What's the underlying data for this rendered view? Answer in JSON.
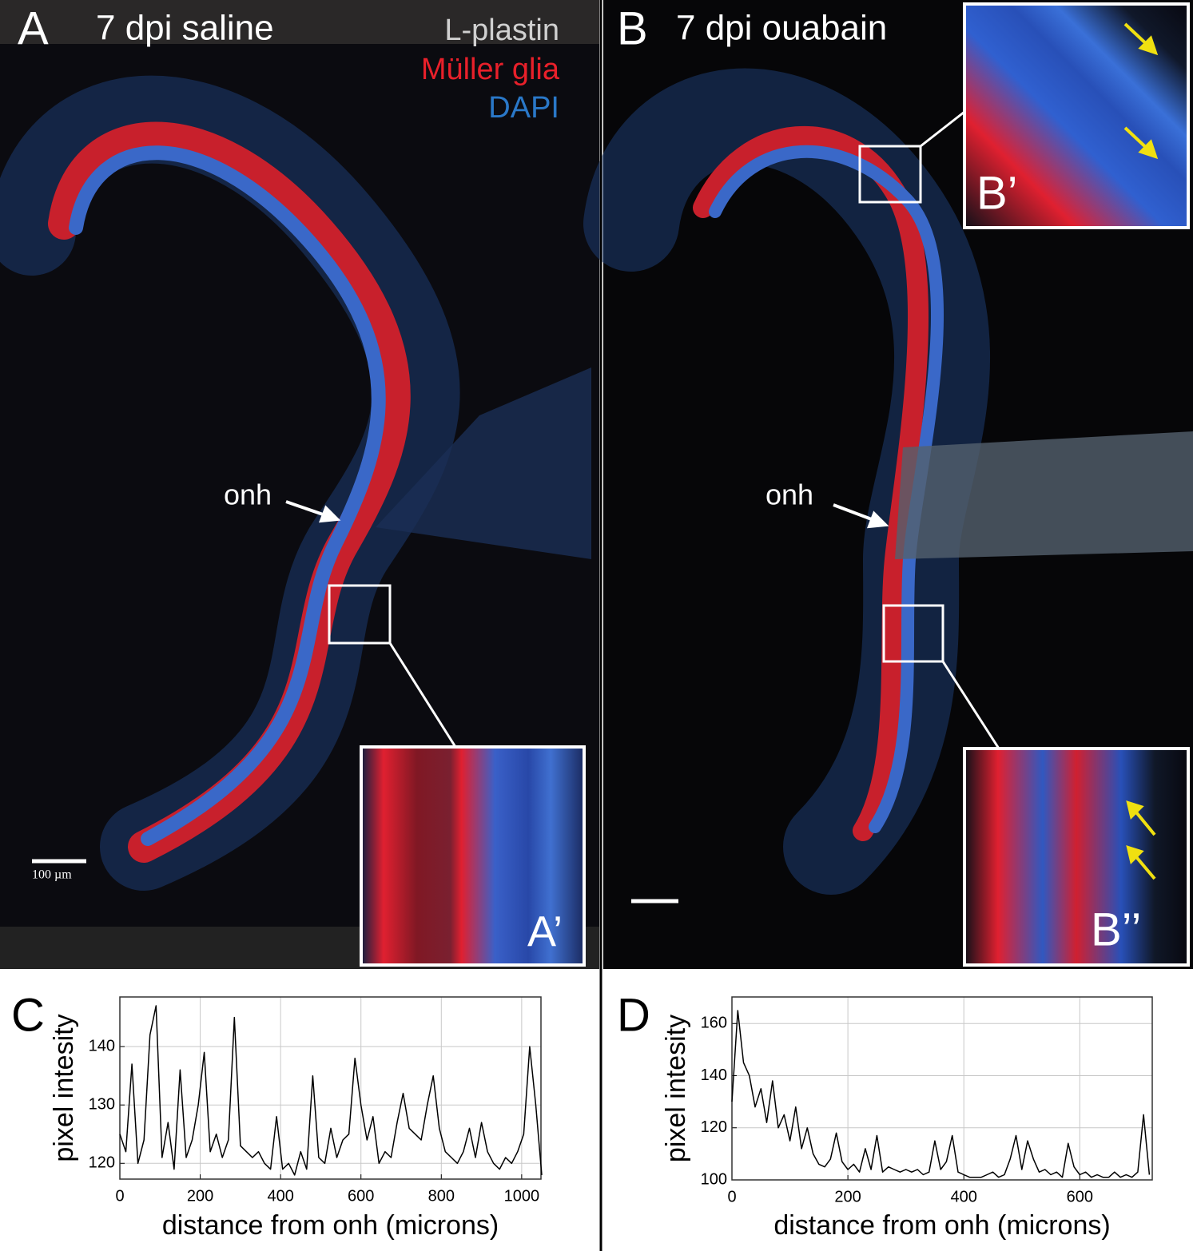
{
  "panels": [
    {
      "letter": "A",
      "title": "7 dpi saline",
      "legend": [
        "L-plastin",
        "Müller glia",
        "DAPI"
      ],
      "annotation": "onh",
      "inset_label": "A’",
      "scale_bar": "100 µm"
    },
    {
      "letter": "B",
      "title": "7 dpi ouabain",
      "annotation": "onh",
      "inset_labels": [
        "B’",
        "B’’"
      ]
    }
  ],
  "chart_data": [
    {
      "type": "line",
      "panel_label": "C",
      "xlabel": "distance from onh (microns)",
      "ylabel": "pixel intesity",
      "color": "#000000",
      "grid": true,
      "x": [
        0,
        15,
        30,
        45,
        60,
        75,
        90,
        105,
        120,
        135,
        150,
        165,
        180,
        195,
        210,
        225,
        240,
        255,
        270,
        285,
        300,
        315,
        330,
        345,
        360,
        375,
        390,
        405,
        420,
        435,
        450,
        465,
        480,
        495,
        510,
        525,
        540,
        555,
        570,
        585,
        600,
        615,
        630,
        645,
        660,
        675,
        690,
        705,
        720,
        735,
        750,
        765,
        780,
        795,
        810,
        825,
        840,
        855,
        870,
        885,
        900,
        915,
        930,
        945,
        960,
        975,
        990,
        1005,
        1020,
        1035,
        1050
      ],
      "values": [
        125,
        122,
        137,
        120,
        124,
        142,
        147,
        121,
        127,
        119,
        136,
        121,
        124,
        130,
        139,
        122,
        125,
        121,
        124,
        145,
        123,
        122,
        121,
        122,
        120,
        119,
        128,
        119,
        120,
        118,
        122,
        119,
        135,
        121,
        120,
        126,
        121,
        124,
        125,
        138,
        130,
        124,
        128,
        120,
        122,
        121,
        127,
        132,
        126,
        125,
        124,
        130,
        135,
        126,
        122,
        121,
        120,
        122,
        126,
        121,
        127,
        122,
        120,
        119,
        121,
        120,
        122,
        125,
        140,
        130,
        118
      ],
      "xlim": [
        0,
        1048
      ],
      "ylim": [
        117.3,
        148.5
      ],
      "xticks": [
        0,
        200,
        400,
        600,
        800,
        1000
      ],
      "yticks": [
        120,
        130,
        140
      ]
    },
    {
      "type": "line",
      "panel_label": "D",
      "xlabel": "distance from onh (microns)",
      "ylabel": "pixel intesity",
      "color": "#000000",
      "grid": true,
      "x": [
        0,
        10,
        20,
        30,
        40,
        50,
        60,
        70,
        80,
        90,
        100,
        110,
        120,
        130,
        140,
        150,
        160,
        170,
        180,
        190,
        200,
        210,
        220,
        230,
        240,
        250,
        260,
        270,
        280,
        290,
        300,
        310,
        320,
        330,
        340,
        350,
        360,
        370,
        380,
        390,
        400,
        410,
        420,
        430,
        440,
        450,
        460,
        470,
        480,
        490,
        500,
        510,
        520,
        530,
        540,
        550,
        560,
        570,
        580,
        590,
        600,
        610,
        620,
        630,
        640,
        650,
        660,
        670,
        680,
        690,
        700,
        710,
        720
      ],
      "values": [
        130,
        165,
        145,
        140,
        128,
        135,
        122,
        138,
        120,
        125,
        115,
        128,
        112,
        120,
        110,
        106,
        105,
        108,
        118,
        107,
        104,
        106,
        103,
        112,
        104,
        117,
        103,
        105,
        104,
        103,
        104,
        103,
        104,
        102,
        103,
        115,
        104,
        107,
        117,
        103,
        102,
        101,
        101,
        101,
        102,
        103,
        101,
        102,
        108,
        117,
        104,
        115,
        108,
        103,
        104,
        102,
        103,
        101,
        114,
        105,
        102,
        103,
        101,
        102,
        101,
        101,
        103,
        101,
        102,
        101,
        103,
        125,
        102
      ],
      "xlim": [
        0,
        725
      ],
      "ylim": [
        100,
        170.2
      ],
      "xticks": [
        0,
        200,
        400,
        600
      ],
      "yticks": [
        100,
        120,
        140,
        160
      ]
    }
  ]
}
